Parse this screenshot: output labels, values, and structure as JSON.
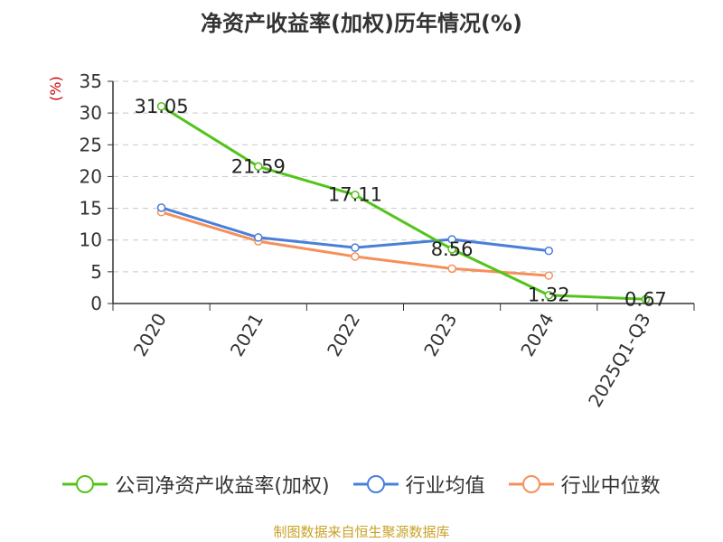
{
  "title": "净资产收益率(加权)历年情况(%)",
  "source": "制图数据来自恒生聚源数据库",
  "chart_data": {
    "type": "line",
    "title": "净资产收益率(加权)历年情况(%)",
    "xlabel": "",
    "ylabel": "(%)",
    "categories": [
      "2020",
      "2021",
      "2022",
      "2023",
      "2024",
      "2025Q1-Q3"
    ],
    "ylim": [
      0,
      35
    ],
    "yticks": [
      0,
      5,
      10,
      15,
      20,
      25,
      30,
      35
    ],
    "grid": true,
    "legend_position": "bottom",
    "series": [
      {
        "name": "公司净资产收益率(加权)",
        "color": "#52c41a",
        "values": [
          31.05,
          21.59,
          17.11,
          8.56,
          1.32,
          0.67
        ],
        "labels": [
          "31.05",
          "21.59",
          "17.11",
          "8.56",
          "1.32",
          "0.67"
        ]
      },
      {
        "name": "行业均值",
        "color": "#4a7fd9",
        "values": [
          15.1,
          10.4,
          8.8,
          10.1,
          8.3,
          null
        ]
      },
      {
        "name": "行业中位数",
        "color": "#f5905a",
        "values": [
          14.4,
          9.8,
          7.4,
          5.5,
          4.4,
          null
        ]
      }
    ]
  }
}
